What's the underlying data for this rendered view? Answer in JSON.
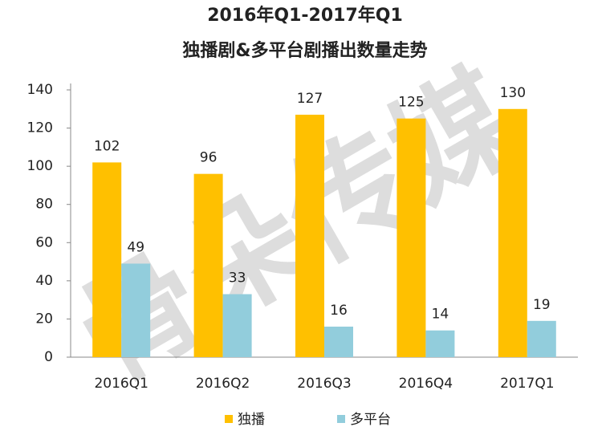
{
  "chart_data": {
    "type": "bar",
    "title": "2016年Q1-2017年Q1",
    "subtitle": "独播剧&多平台剧播出数量走势",
    "watermark": "骨朵传媒",
    "categories": [
      "2016Q1",
      "2016Q2",
      "2016Q3",
      "2016Q4",
      "2017Q1"
    ],
    "series": [
      {
        "name": "独播",
        "color": "#FFC000",
        "values": [
          102,
          96,
          127,
          125,
          130
        ]
      },
      {
        "name": "多平台",
        "color": "#92CDDC",
        "values": [
          49,
          33,
          16,
          14,
          19
        ]
      }
    ],
    "ylim": [
      0,
      140
    ],
    "yticks": [
      0,
      20,
      40,
      60,
      80,
      100,
      120,
      140
    ],
    "grid": false
  }
}
